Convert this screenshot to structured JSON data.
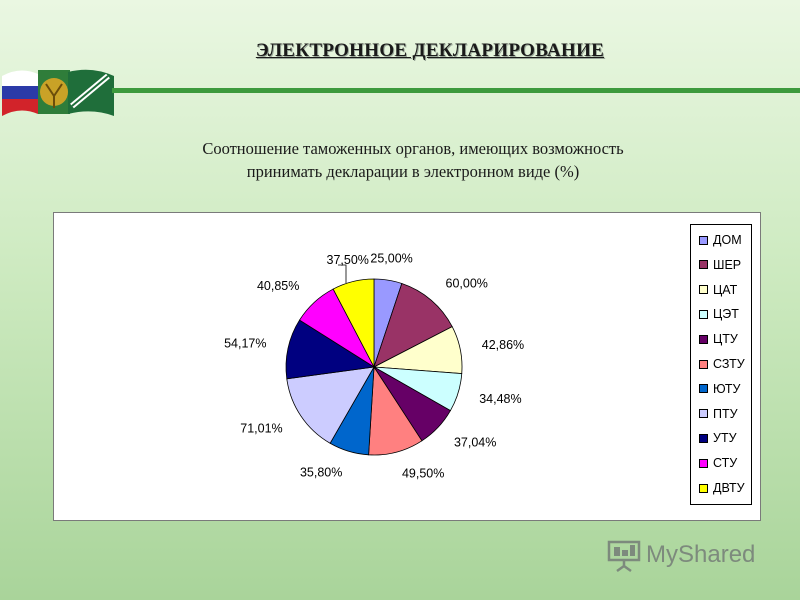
{
  "header": {
    "title": "ЭЛЕКТРОННОЕ ДЕКЛАРИРОВАНИЕ"
  },
  "subtitle": {
    "line1": "Соотношение таможенных органов, имеющих возможность",
    "line2": "принимать декларации в электронном виде (%)"
  },
  "chart_data": {
    "type": "pie",
    "unit": "%",
    "categories": [
      "ДОМ",
      "ШЕР",
      "ЦАТ",
      "ЦЭТ",
      "ЦТУ",
      "СЗТУ",
      "ЮТУ",
      "ПТУ",
      "УТУ",
      "СТУ",
      "ДВТУ"
    ],
    "values": [
      25.0,
      60.0,
      42.86,
      34.48,
      37.04,
      49.5,
      35.8,
      71.01,
      54.17,
      40.85,
      37.5
    ],
    "labels": [
      "25,00%",
      "60,00%",
      "42,86%",
      "34,48%",
      "37,04%",
      "49,50%",
      "35,80%",
      "71,01%",
      "54,17%",
      "40,85%",
      "37,50%"
    ],
    "colors": [
      "#9999ff",
      "#993366",
      "#ffffcc",
      "#ccffff",
      "#660066",
      "#ff8080",
      "#0066cc",
      "#ccccff",
      "#000080",
      "#ff00ff",
      "#ffff00"
    ],
    "legend_position": "right"
  },
  "brand": {
    "text": "MyShared"
  },
  "icons": {
    "brand": "presentation-board-icon",
    "emblem": "customs-emblem-icon"
  }
}
